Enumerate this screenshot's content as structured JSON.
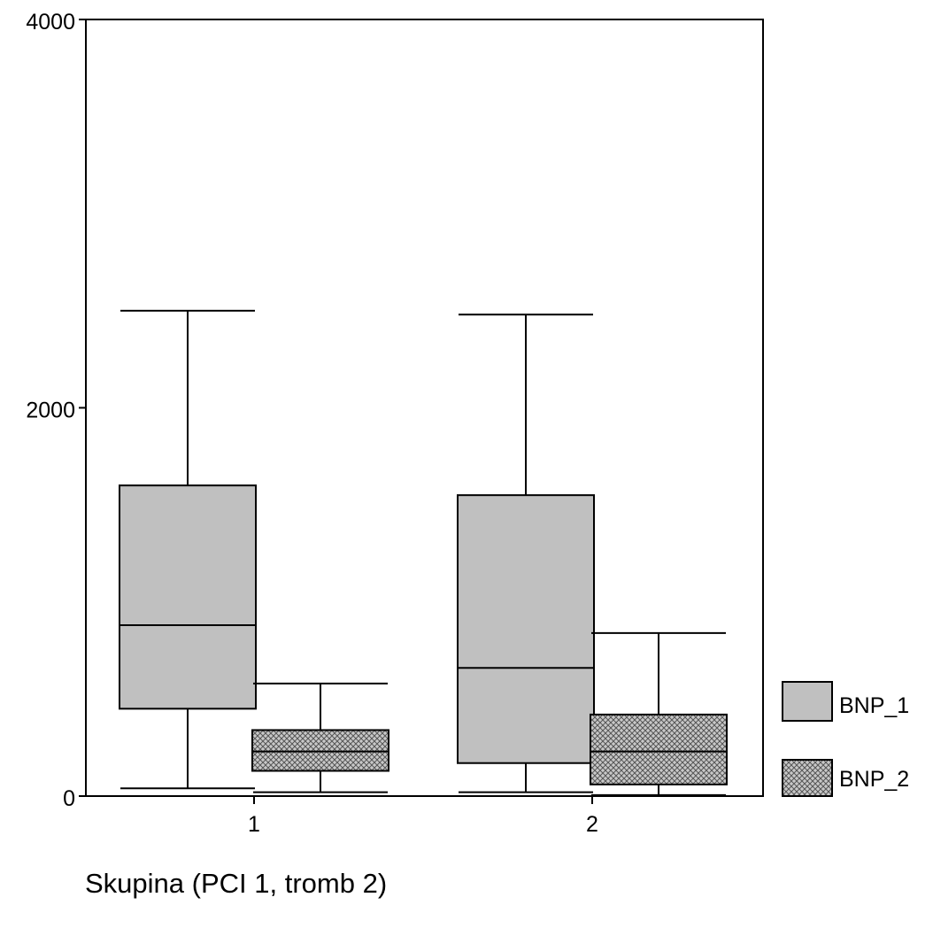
{
  "chart_data": {
    "type": "boxplot",
    "xlabel": "Skupina (PCI 1, tromb 2)",
    "ylabel": "",
    "ylim": [
      0,
      4000
    ],
    "y_ticks": [
      "0",
      "2000",
      "4000"
    ],
    "categories": [
      "1",
      "2"
    ],
    "grid": false,
    "legend_position": "right",
    "series": [
      {
        "name": "BNP_1",
        "fill": "#c0c0c0",
        "pattern": "solid",
        "boxes": [
          {
            "category": "1",
            "whisker_low": 40,
            "q1": 450,
            "median": 880,
            "q3": 1600,
            "whisker_high": 2500
          },
          {
            "category": "2",
            "whisker_low": 20,
            "q1": 170,
            "median": 660,
            "q3": 1550,
            "whisker_high": 2480
          }
        ]
      },
      {
        "name": "BNP_2",
        "fill": "#b8b8b8",
        "pattern": "crosshatch",
        "boxes": [
          {
            "category": "1",
            "whisker_low": 20,
            "q1": 130,
            "median": 230,
            "q3": 340,
            "whisker_high": 580
          },
          {
            "category": "2",
            "whisker_low": 5,
            "q1": 60,
            "median": 230,
            "q3": 420,
            "whisker_high": 840
          }
        ]
      }
    ]
  },
  "colors": {
    "stroke": "#000000",
    "background": "#ffffff"
  }
}
